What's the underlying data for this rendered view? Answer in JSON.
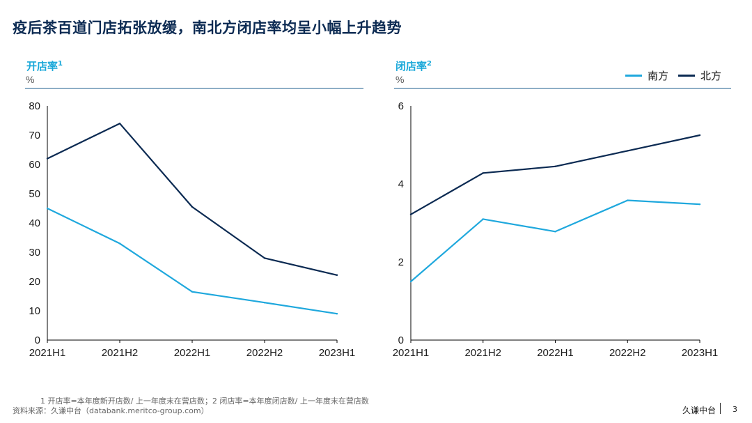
{
  "title": "疫后茶百道门店拓张放缓，南北方闭店率均呈小幅上升趋势",
  "panel1": {
    "label": "开店率",
    "sup": "1",
    "unit": "%"
  },
  "panel2": {
    "label": "闭店率",
    "sup": "2",
    "unit": "%"
  },
  "legend": {
    "south": "南方",
    "north": "北方"
  },
  "colors": {
    "south": "#1fa8dd",
    "north": "#0b2a52"
  },
  "chart_data": [
    {
      "type": "line",
      "title": "开店率",
      "ylabel": "%",
      "categories": [
        "2021H1",
        "2021H2",
        "2022H1",
        "2022H2",
        "2023H1"
      ],
      "ylim": [
        0,
        80
      ],
      "yticks": [
        0,
        10,
        20,
        30,
        40,
        50,
        60,
        70,
        80
      ],
      "series": [
        {
          "name": "南方",
          "values": [
            45,
            33,
            16.5,
            12.8,
            9
          ]
        },
        {
          "name": "北方",
          "values": [
            62,
            74,
            45.5,
            28,
            22.2
          ]
        }
      ]
    },
    {
      "type": "line",
      "title": "闭店率",
      "ylabel": "%",
      "categories": [
        "2021H1",
        "2021H2",
        "2022H1",
        "2022H2",
        "2023H1"
      ],
      "ylim": [
        0,
        6
      ],
      "yticks": [
        0,
        2,
        4,
        6
      ],
      "series": [
        {
          "name": "南方",
          "values": [
            1.5,
            3.1,
            2.78,
            3.58,
            3.48
          ]
        },
        {
          "name": "北方",
          "values": [
            3.22,
            4.28,
            4.45,
            4.85,
            5.25
          ]
        }
      ]
    }
  ],
  "footnote": "1  开店率=本年度新开店数/ 上一年度末在营店数；2  闭店率=本年度闭店数/ 上一年度末在营店数",
  "source": "资料来源：久谦中台（databank.meritco-group.com）",
  "brand": "久谦中台",
  "page_number": "3"
}
